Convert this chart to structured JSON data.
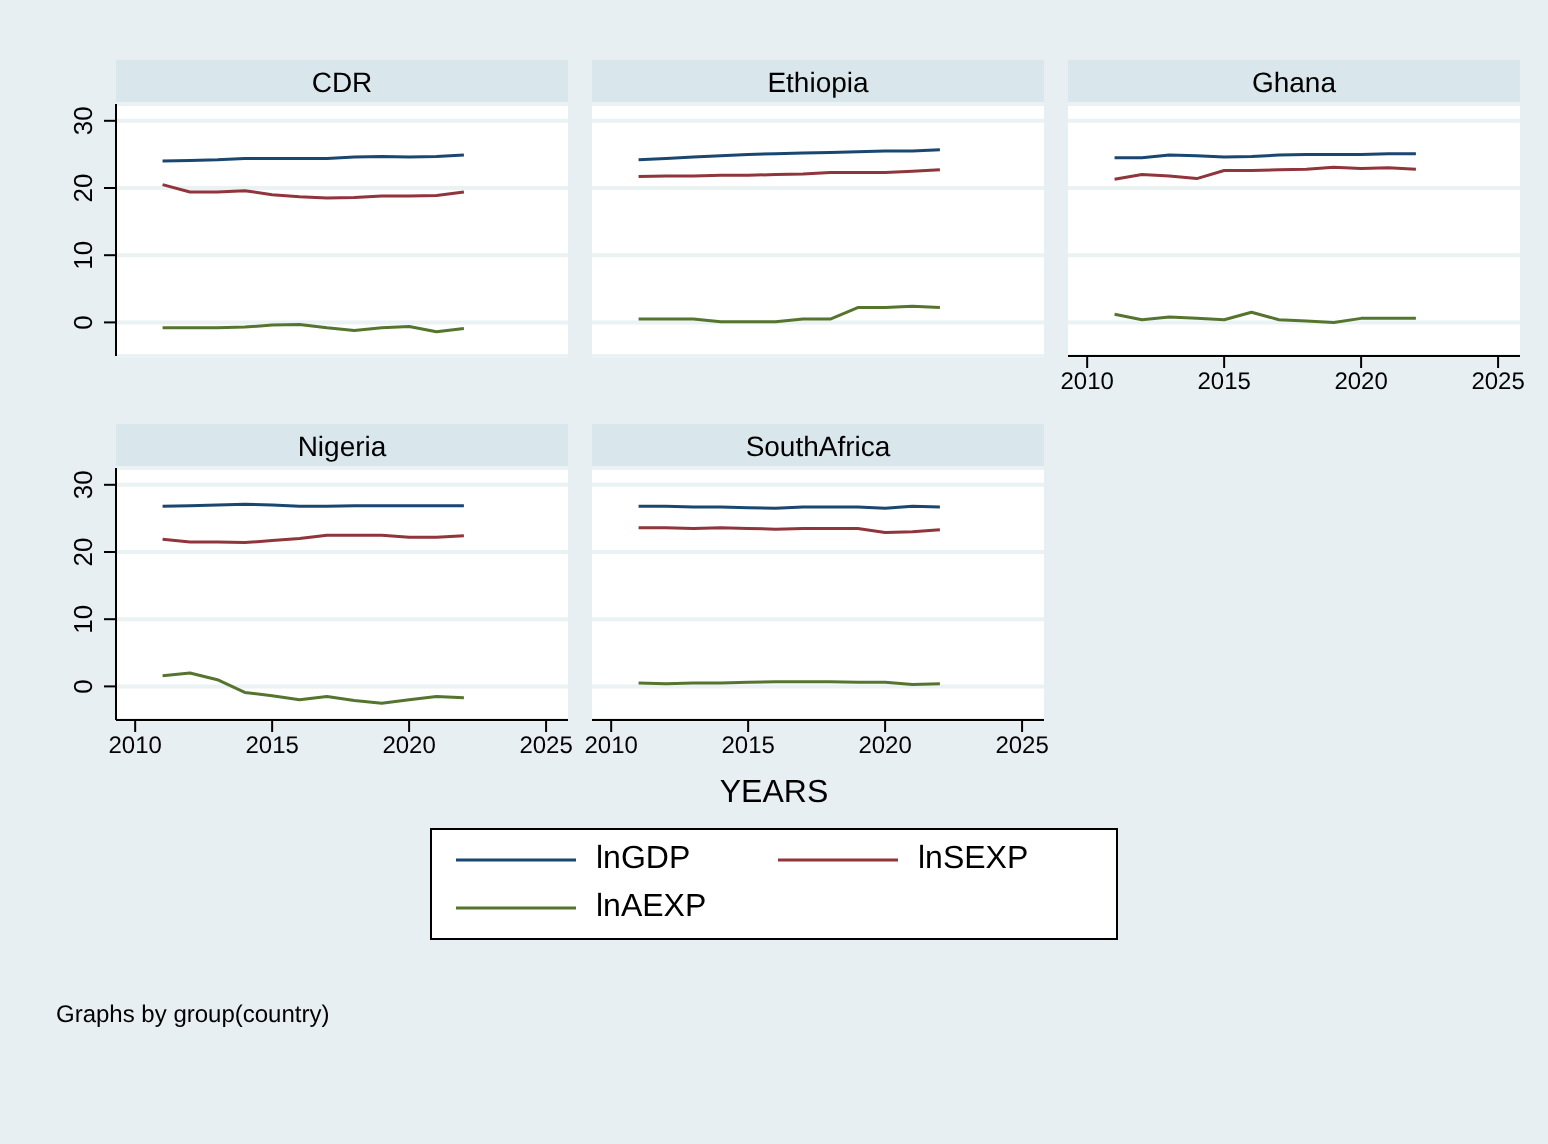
{
  "chart_data": [
    {
      "type": "line",
      "title": "CDR",
      "x": [
        2011,
        2012,
        2013,
        2014,
        2015,
        2016,
        2017,
        2018,
        2019,
        2020,
        2021,
        2022
      ],
      "xlim": [
        2009.3,
        2025.8
      ],
      "xticks": [
        2010,
        2015,
        2020,
        2025
      ],
      "ylim": [
        -5,
        32.5
      ],
      "yticks": [
        0,
        10,
        20,
        30
      ],
      "grid": "y",
      "tick_labels": "y",
      "legend": "bottom",
      "series": [
        {
          "name": "lnGDP",
          "color": "#1a476f",
          "values": [
            24.0,
            24.1,
            24.2,
            24.4,
            24.4,
            24.4,
            24.4,
            24.6,
            24.7,
            24.6,
            24.7,
            24.9
          ]
        },
        {
          "name": "lnSEXP",
          "color": "#90353b",
          "values": [
            20.5,
            19.4,
            19.4,
            19.6,
            19.0,
            18.7,
            18.5,
            18.6,
            18.8,
            18.8,
            18.9,
            19.4
          ]
        },
        {
          "name": "lnAEXP",
          "color": "#55752f",
          "values": [
            -0.8,
            -0.8,
            -0.8,
            -0.7,
            -0.4,
            -0.3,
            -0.8,
            -1.2,
            -0.8,
            -0.6,
            -1.4,
            -0.9
          ]
        }
      ]
    },
    {
      "type": "line",
      "title": "Ethiopia",
      "x": [
        2011,
        2012,
        2013,
        2014,
        2015,
        2016,
        2017,
        2018,
        2019,
        2020,
        2021,
        2022
      ],
      "xlim": [
        2009.3,
        2025.8
      ],
      "xticks": [
        2010,
        2015,
        2020,
        2025
      ],
      "ylim": [
        -5,
        32.5
      ],
      "yticks": [
        0,
        10,
        20,
        30
      ],
      "grid": "y",
      "tick_labels": false,
      "series": [
        {
          "color": "#1a476f",
          "values": [
            24.2,
            24.4,
            24.6,
            24.8,
            25.0,
            25.1,
            25.2,
            25.3,
            25.4,
            25.5,
            25.5,
            25.7
          ]
        },
        {
          "color": "#90353b",
          "values": [
            21.7,
            21.8,
            21.8,
            21.9,
            21.9,
            22.0,
            22.1,
            22.3,
            22.3,
            22.3,
            22.5,
            22.7
          ]
        },
        {
          "color": "#55752f",
          "values": [
            0.5,
            0.5,
            0.5,
            0.1,
            0.1,
            0.1,
            0.5,
            0.5,
            2.2,
            2.2,
            2.4,
            2.2
          ]
        }
      ]
    },
    {
      "type": "line",
      "title": "Ghana",
      "x": [
        2011,
        2012,
        2013,
        2014,
        2015,
        2016,
        2017,
        2018,
        2019,
        2020,
        2021,
        2022
      ],
      "xlim": [
        2009.3,
        2025.8
      ],
      "xticks": [
        2010,
        2015,
        2020,
        2025
      ],
      "ylim": [
        -5,
        32.5
      ],
      "yticks": [
        0,
        10,
        20,
        30
      ],
      "grid": "y",
      "tick_labels": "x",
      "series": [
        {
          "color": "#1a476f",
          "values": [
            24.5,
            24.5,
            24.9,
            24.8,
            24.6,
            24.7,
            24.9,
            25.0,
            25.0,
            25.0,
            25.1,
            25.1
          ]
        },
        {
          "color": "#90353b",
          "values": [
            21.3,
            22.0,
            21.8,
            21.4,
            22.6,
            22.6,
            22.7,
            22.8,
            23.1,
            22.9,
            23.0,
            22.8
          ]
        },
        {
          "color": "#55752f",
          "values": [
            1.2,
            0.4,
            0.8,
            0.6,
            0.4,
            1.5,
            0.4,
            0.2,
            0.0,
            0.6,
            0.6,
            0.6
          ]
        }
      ]
    },
    {
      "type": "line",
      "title": "Nigeria",
      "x": [
        2011,
        2012,
        2013,
        2014,
        2015,
        2016,
        2017,
        2018,
        2019,
        2020,
        2021,
        2022
      ],
      "xlim": [
        2009.3,
        2025.8
      ],
      "xticks": [
        2010,
        2015,
        2020,
        2025
      ],
      "ylim": [
        -5,
        32.5
      ],
      "yticks": [
        0,
        10,
        20,
        30
      ],
      "grid": "y",
      "series": [
        {
          "color": "#1a476f",
          "values": [
            26.8,
            26.9,
            27.0,
            27.1,
            27.0,
            26.8,
            26.8,
            26.9,
            26.9,
            26.9,
            26.9,
            26.9
          ]
        },
        {
          "color": "#90353b",
          "values": [
            21.9,
            21.5,
            21.5,
            21.4,
            21.7,
            22.0,
            22.5,
            22.5,
            22.5,
            22.2,
            22.2,
            22.4
          ]
        },
        {
          "color": "#55752f",
          "values": [
            1.6,
            2.0,
            1.0,
            -0.9,
            -1.4,
            -2.0,
            -1.5,
            -2.1,
            -2.5,
            -2.0,
            -1.5,
            -1.7
          ]
        }
      ]
    },
    {
      "type": "line",
      "title": "SouthAfrica",
      "x": [
        2011,
        2012,
        2013,
        2014,
        2015,
        2016,
        2017,
        2018,
        2019,
        2020,
        2021,
        2022
      ],
      "xlim": [
        2009.3,
        2025.8
      ],
      "xticks": [
        2010,
        2015,
        2020,
        2025
      ],
      "ylim": [
        -5,
        32.5
      ],
      "yticks": [
        0,
        10,
        20,
        30
      ],
      "grid": "y",
      "tick_labels": "x",
      "xlabel": "YEARS",
      "annotations": [
        "Graphs by group(country)"
      ],
      "series": [
        {
          "color": "#1a476f",
          "values": [
            26.8,
            26.8,
            26.7,
            26.7,
            26.6,
            26.5,
            26.7,
            26.7,
            26.7,
            26.5,
            26.8,
            26.7
          ]
        },
        {
          "color": "#90353b",
          "values": [
            23.6,
            23.6,
            23.5,
            23.6,
            23.5,
            23.4,
            23.5,
            23.5,
            23.5,
            22.9,
            23.0,
            23.3
          ]
        },
        {
          "color": "#55752f",
          "values": [
            0.5,
            0.4,
            0.5,
            0.5,
            0.6,
            0.7,
            0.7,
            0.7,
            0.6,
            0.6,
            0.3,
            0.4
          ]
        }
      ]
    }
  ]
}
